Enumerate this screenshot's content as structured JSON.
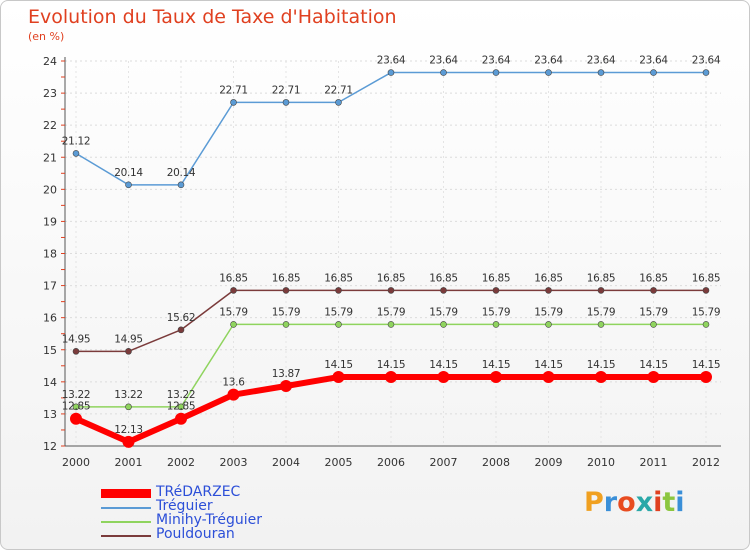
{
  "chart_data": {
    "type": "line",
    "title": "Evolution du Taux de Taxe d'Habitation",
    "subtitle": "(en %)",
    "xlabel": "",
    "ylabel": "",
    "categories": [
      "2000",
      "2001",
      "2002",
      "2003",
      "2004",
      "2005",
      "2006",
      "2007",
      "2008",
      "2009",
      "2010",
      "2011",
      "2012"
    ],
    "ylim": [
      12,
      24
    ],
    "yticks": [
      12,
      13,
      14,
      15,
      16,
      17,
      18,
      19,
      20,
      21,
      22,
      23,
      24
    ],
    "grid": true,
    "series": [
      {
        "name": "TRéDARZEC",
        "color": "#ff0000",
        "values": [
          12.85,
          12.13,
          12.85,
          13.6,
          13.87,
          14.15,
          14.15,
          14.15,
          14.15,
          14.15,
          14.15,
          14.15,
          14.15
        ],
        "labels": [
          "12.85",
          "12.13",
          "12.85",
          "13.6",
          "13.87",
          "14.15",
          "14.15",
          "14.15",
          "14.15",
          "14.15",
          "14.15",
          "14.15",
          "14.15"
        ]
      },
      {
        "name": "Tréguier",
        "color": "#5b9bd5",
        "values": [
          21.12,
          20.14,
          20.14,
          22.71,
          22.71,
          22.71,
          23.64,
          23.64,
          23.64,
          23.64,
          23.64,
          23.64,
          23.64
        ],
        "labels": [
          "21.12",
          "20.14",
          "20.14",
          "22.71",
          "22.71",
          "22.71",
          "23.64",
          "23.64",
          "23.64",
          "23.64",
          "23.64",
          "23.64",
          "23.64"
        ]
      },
      {
        "name": "Minihy-Tréguier",
        "color": "#8fd45e",
        "values": [
          13.22,
          13.22,
          13.22,
          15.79,
          15.79,
          15.79,
          15.79,
          15.79,
          15.79,
          15.79,
          15.79,
          15.79,
          15.79
        ],
        "labels": [
          "13.22",
          "13.22",
          "13.22",
          "15.79",
          "15.79",
          "15.79",
          "15.79",
          "15.79",
          "15.79",
          "15.79",
          "15.79",
          "15.79",
          "15.79"
        ]
      },
      {
        "name": "Pouldouran",
        "color": "#7b3b3b",
        "values": [
          14.95,
          14.95,
          15.62,
          16.85,
          16.85,
          16.85,
          16.85,
          16.85,
          16.85,
          16.85,
          16.85,
          16.85,
          16.85
        ],
        "labels": [
          "14.95",
          "14.95",
          "15.62",
          "16.85",
          "16.85",
          "16.85",
          "16.85",
          "16.85",
          "16.85",
          "16.85",
          "16.85",
          "16.85",
          "16.85"
        ]
      }
    ]
  },
  "logo": {
    "text": "Proxiti",
    "colors": [
      "#f0a020",
      "#3a8fd8",
      "#e84c20",
      "#2aa8a8",
      "#e04020",
      "#8cc63f",
      "#3a8fd8"
    ]
  }
}
